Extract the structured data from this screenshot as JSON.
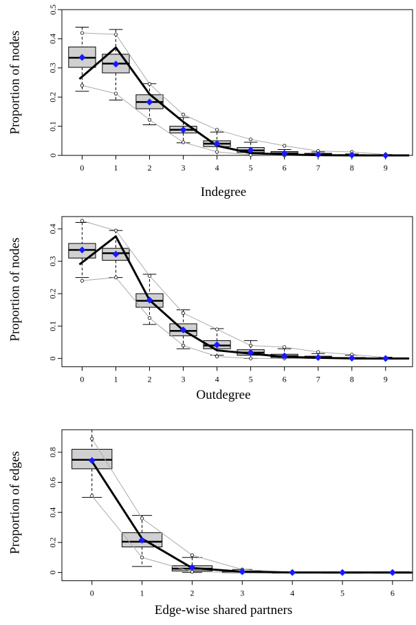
{
  "chart_data": [
    {
      "type": "boxplot",
      "xlabel": "Indegree",
      "ylabel": "Proportion of nodes",
      "xticks": [
        0,
        1,
        2,
        3,
        4,
        5,
        6,
        7,
        8,
        9
      ],
      "yticks": [
        0,
        0.1,
        0.2,
        0.3,
        0.4,
        0.5
      ],
      "ytick_labels": [
        "0",
        "0.1",
        "0.2",
        "0.3",
        "0.4",
        "0.5"
      ],
      "xlim": [
        -0.6,
        9.8
      ],
      "ylim": [
        0,
        0.5
      ],
      "boxes": [
        {
          "x": 0,
          "wlo": 0.22,
          "q1": 0.302,
          "med": 0.335,
          "q3": 0.372,
          "whi": 0.44
        },
        {
          "x": 1,
          "wlo": 0.19,
          "q1": 0.283,
          "med": 0.315,
          "q3": 0.347,
          "whi": 0.432
        },
        {
          "x": 2,
          "wlo": 0.105,
          "q1": 0.16,
          "med": 0.183,
          "q3": 0.208,
          "whi": 0.246
        },
        {
          "x": 3,
          "wlo": 0.043,
          "q1": 0.077,
          "med": 0.088,
          "q3": 0.1,
          "whi": 0.13
        },
        {
          "x": 4,
          "wlo": 0.0,
          "q1": 0.03,
          "med": 0.04,
          "q3": 0.05,
          "whi": 0.08
        },
        {
          "x": 5,
          "wlo": 0.0,
          "q1": 0.01,
          "med": 0.017,
          "q3": 0.027,
          "whi": 0.045
        },
        {
          "x": 6,
          "wlo": 0.0,
          "q1": 0.003,
          "med": 0.007,
          "q3": 0.013,
          "whi": 0.02
        },
        {
          "x": 7,
          "wlo": 0.0,
          "q1": 0.0,
          "med": 0.003,
          "q3": 0.007,
          "whi": 0.012
        },
        {
          "x": 8,
          "wlo": 0.0,
          "q1": 0.0,
          "med": 0.001,
          "q3": 0.002,
          "whi": 0.005
        },
        {
          "x": 9,
          "wlo": 0.0,
          "q1": 0.0,
          "med": 0.0,
          "q3": 0.001,
          "whi": 0.003
        }
      ],
      "observed": {
        "x": [
          -0.08,
          1,
          2,
          3,
          4,
          5,
          6,
          7,
          8,
          9,
          9.7
        ],
        "y": [
          0.262,
          0.37,
          0.21,
          0.115,
          0.033,
          0.008,
          0.003,
          0.001,
          0.0,
          0.0,
          0.0
        ]
      },
      "mean": {
        "x": [
          0,
          1,
          2,
          3,
          4,
          5,
          6,
          7,
          8,
          9
        ],
        "y": [
          0.336,
          0.313,
          0.183,
          0.088,
          0.04,
          0.018,
          0.007,
          0.003,
          0.001,
          0.0
        ]
      },
      "upper": {
        "x": [
          0,
          1,
          2,
          3,
          4,
          5,
          6,
          7,
          8,
          9
        ],
        "y": [
          0.42,
          0.415,
          0.245,
          0.14,
          0.088,
          0.055,
          0.033,
          0.015,
          0.012,
          0.003
        ]
      },
      "lower": {
        "x": [
          0,
          1,
          2,
          3,
          4,
          5,
          6,
          7,
          8,
          9
        ],
        "y": [
          0.24,
          0.212,
          0.122,
          0.045,
          0.012,
          0.002,
          0.0,
          0.0,
          0.0,
          0.0
        ]
      },
      "colors": {
        "box_fill": "#d0d0d0",
        "mean": "#1a1aff",
        "observed": "#000000",
        "envelope": "#aaaaaa"
      }
    },
    {
      "type": "boxplot",
      "xlabel": "Outdegree",
      "ylabel": "Proportion of nodes",
      "xticks": [
        0,
        1,
        2,
        3,
        4,
        5,
        6,
        7,
        8,
        9
      ],
      "yticks": [
        0,
        0.1,
        0.2,
        0.3,
        0.4
      ],
      "ytick_labels": [
        "0",
        "0.1",
        "0.2",
        "0.3",
        "0.4"
      ],
      "xlim": [
        -0.6,
        9.8
      ],
      "ylim": [
        -0.012,
        0.438
      ],
      "boxes": [
        {
          "x": 0,
          "wlo": 0.25,
          "q1": 0.31,
          "med": 0.335,
          "q3": 0.355,
          "whi": 0.42
        },
        {
          "x": 1,
          "wlo": 0.25,
          "q1": 0.303,
          "med": 0.325,
          "q3": 0.34,
          "whi": 0.395
        },
        {
          "x": 2,
          "wlo": 0.105,
          "q1": 0.158,
          "med": 0.178,
          "q3": 0.2,
          "whi": 0.26
        },
        {
          "x": 3,
          "wlo": 0.03,
          "q1": 0.07,
          "med": 0.085,
          "q3": 0.107,
          "whi": 0.15
        },
        {
          "x": 4,
          "wlo": 0.01,
          "q1": 0.03,
          "med": 0.04,
          "q3": 0.055,
          "whi": 0.092
        },
        {
          "x": 5,
          "wlo": 0.0,
          "q1": 0.01,
          "med": 0.018,
          "q3": 0.027,
          "whi": 0.055
        },
        {
          "x": 6,
          "wlo": 0.0,
          "q1": 0.003,
          "med": 0.007,
          "q3": 0.013,
          "whi": 0.03
        },
        {
          "x": 7,
          "wlo": 0.0,
          "q1": 0.0,
          "med": 0.003,
          "q3": 0.007,
          "whi": 0.015
        },
        {
          "x": 8,
          "wlo": 0.0,
          "q1": 0.0,
          "med": 0.001,
          "q3": 0.003,
          "whi": 0.01
        },
        {
          "x": 9,
          "wlo": 0.0,
          "q1": 0.0,
          "med": 0.0,
          "q3": 0.001,
          "whi": 0.004
        }
      ],
      "observed": {
        "x": [
          -0.08,
          1,
          2,
          3,
          4,
          5,
          6,
          7,
          8,
          9,
          9.7
        ],
        "y": [
          0.29,
          0.377,
          0.18,
          0.087,
          0.025,
          0.015,
          0.005,
          0.002,
          0.0,
          0.0,
          0.0
        ]
      },
      "mean": {
        "x": [
          0,
          1,
          2,
          3,
          4,
          5,
          6,
          7,
          8,
          9
        ],
        "y": [
          0.335,
          0.322,
          0.18,
          0.088,
          0.042,
          0.018,
          0.008,
          0.003,
          0.001,
          0.0
        ]
      },
      "upper": {
        "x": [
          0,
          1,
          2,
          3,
          4,
          5,
          6,
          7,
          8,
          9
        ],
        "y": [
          0.425,
          0.395,
          0.255,
          0.14,
          0.09,
          0.04,
          0.035,
          0.02,
          0.012,
          0.003
        ]
      },
      "lower": {
        "x": [
          0,
          1,
          2,
          3,
          4,
          5,
          6,
          7,
          8,
          9
        ],
        "y": [
          0.24,
          0.25,
          0.125,
          0.04,
          0.006,
          0.0,
          0.0,
          0.0,
          0.0,
          0.0
        ]
      },
      "colors": {
        "box_fill": "#d0d0d0",
        "mean": "#1a1aff",
        "observed": "#000000",
        "envelope": "#aaaaaa"
      }
    },
    {
      "type": "boxplot",
      "xlabel": "Edge-wise shared partners",
      "ylabel": "Proportion of edges",
      "xticks": [
        0,
        1,
        2,
        3,
        4,
        5,
        6
      ],
      "yticks": [
        0,
        0.2,
        0.4,
        0.6,
        0.8
      ],
      "ytick_labels": [
        "0",
        "0.2",
        "0.4",
        "0.6",
        "0.8"
      ],
      "xlim": [
        -0.6,
        6.4
      ],
      "ylim": [
        -0.02,
        0.95
      ],
      "boxes": [
        {
          "x": 0,
          "wlo": 0.5,
          "q1": 0.69,
          "med": 0.75,
          "q3": 0.82,
          "whi": 0.95
        },
        {
          "x": 1,
          "wlo": 0.04,
          "q1": 0.17,
          "med": 0.205,
          "q3": 0.265,
          "whi": 0.38
        },
        {
          "x": 2,
          "wlo": 0.0,
          "q1": 0.01,
          "med": 0.025,
          "q3": 0.045,
          "whi": 0.1
        },
        {
          "x": 3,
          "wlo": 0.0,
          "q1": 0.0,
          "med": 0.003,
          "q3": 0.01,
          "whi": 0.02
        },
        {
          "x": 4,
          "wlo": 0.0,
          "q1": 0.0,
          "med": 0.0,
          "q3": 0.001,
          "whi": 0.003
        },
        {
          "x": 5,
          "wlo": 0.0,
          "q1": 0.0,
          "med": 0.0,
          "q3": 0.0,
          "whi": 0.001
        },
        {
          "x": 6,
          "wlo": 0.0,
          "q1": 0.0,
          "med": 0.0,
          "q3": 0.0,
          "whi": 0.0
        }
      ],
      "observed": {
        "x": [
          0,
          1,
          2,
          3,
          4,
          5,
          6,
          6.35
        ],
        "y": [
          0.74,
          0.225,
          0.03,
          0.005,
          0.0,
          0.0,
          0.0,
          0.0
        ]
      },
      "mean": {
        "x": [
          0,
          1,
          2,
          3,
          4,
          5,
          6
        ],
        "y": [
          0.745,
          0.215,
          0.033,
          0.005,
          0.0,
          0.0,
          0.0
        ]
      },
      "upper": {
        "x": [
          0,
          1,
          2,
          3,
          4,
          5,
          6
        ],
        "y": [
          0.89,
          0.36,
          0.115,
          0.02,
          0.002,
          0.0,
          0.0
        ]
      },
      "lower": {
        "x": [
          0,
          1,
          2,
          3,
          4,
          5,
          6
        ],
        "y": [
          0.51,
          0.1,
          0.005,
          0.0,
          0.0,
          0.0,
          0.0
        ]
      },
      "colors": {
        "box_fill": "#d0d0d0",
        "mean": "#1a1aff",
        "observed": "#000000",
        "envelope": "#aaaaaa"
      }
    }
  ]
}
